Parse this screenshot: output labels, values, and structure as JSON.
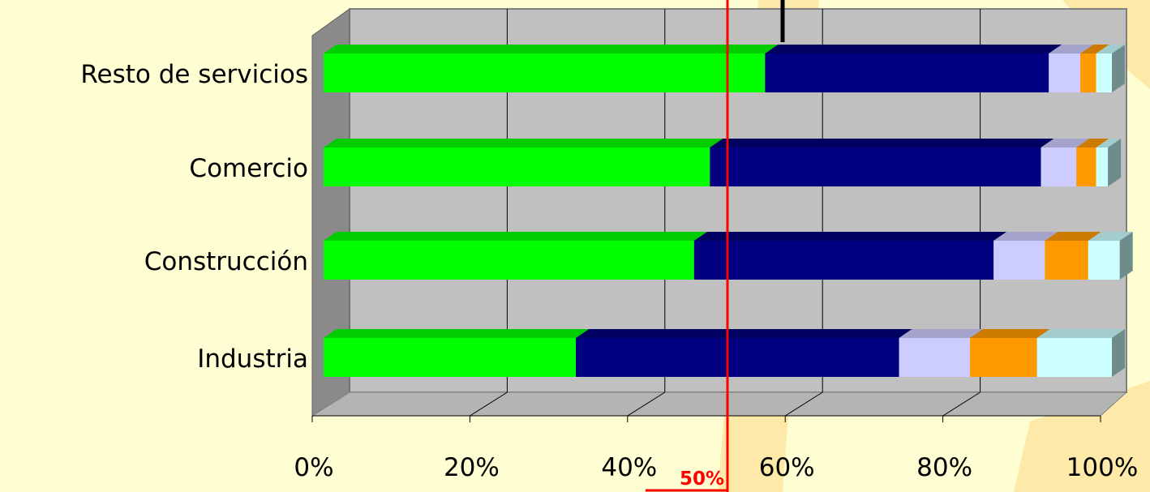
{
  "colors": {
    "background": "#fefed2",
    "watermark": "#fde9a8",
    "plot_bg": "#c0c0c0",
    "plot_wall_side": "#8a8a8a",
    "plot_floor": "#b4b4b4",
    "gridline": "#000000",
    "reference_line": "#ff0000"
  },
  "chart_data": {
    "type": "bar",
    "orientation": "horizontal",
    "stacked": "percent",
    "three_d": true,
    "categories": [
      "Industria",
      "Construcción",
      "Comercio",
      "Resto de servicios"
    ],
    "series": [
      {
        "color": "#00ff00",
        "values": [
          32,
          47,
          49,
          56
        ]
      },
      {
        "color": "#000080",
        "values": [
          41,
          38,
          42,
          36
        ]
      },
      {
        "color": "#ccccff",
        "values": [
          9,
          6.5,
          4.5,
          4
        ]
      },
      {
        "color": "#ff9900",
        "values": [
          8.5,
          5.5,
          2.5,
          2
        ]
      },
      {
        "color": "#ccffff",
        "values": [
          9.5,
          4,
          1.5,
          2
        ]
      }
    ],
    "xlim": [
      0,
      100
    ],
    "x_ticks": [
      "0%",
      "20%",
      "40%",
      "60%",
      "80%",
      "100%"
    ],
    "grid": true,
    "legend": "none",
    "reference_line": {
      "value": 50,
      "label": "50%"
    }
  }
}
